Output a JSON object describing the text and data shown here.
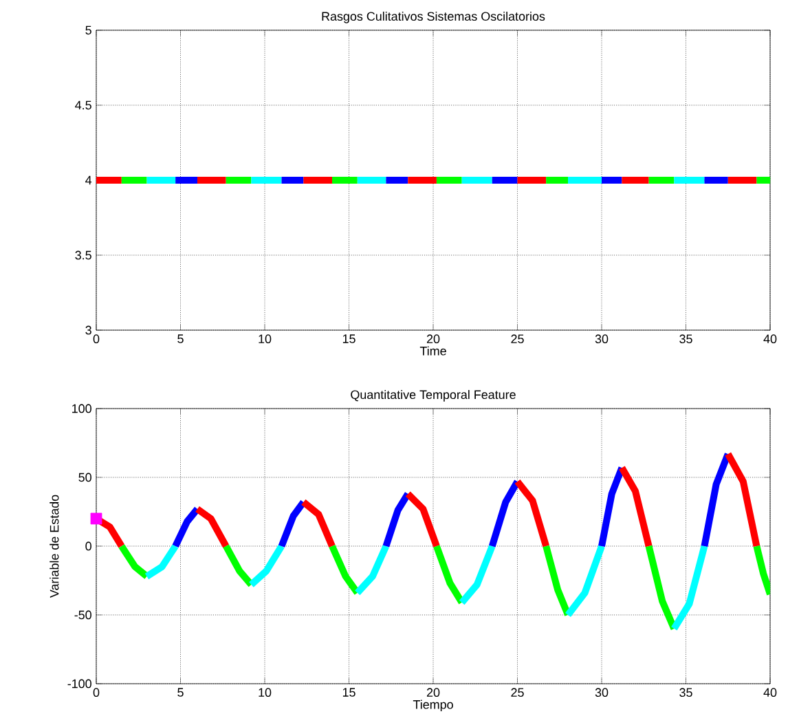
{
  "chart_data": [
    {
      "type": "line",
      "title": "Rasgos Culitativos Sistemas Oscilatorios",
      "xlabel": "Time",
      "xlim": [
        0,
        40
      ],
      "xticks": [
        0,
        5,
        10,
        15,
        20,
        25,
        30,
        35,
        40
      ],
      "ylim": [
        3,
        5
      ],
      "yticks": [
        3,
        3.5,
        4,
        4.5,
        5
      ],
      "grid": true,
      "series": [
        {
          "color": "#ff0000",
          "x": [
            0,
            1.5
          ],
          "values": [
            4,
            4
          ]
        },
        {
          "color": "#00ff00",
          "x": [
            1.5,
            3.0
          ],
          "values": [
            4,
            4
          ]
        },
        {
          "color": "#00ffff",
          "x": [
            3.0,
            4.7
          ],
          "values": [
            4,
            4
          ]
        },
        {
          "color": "#0000ff",
          "x": [
            4.7,
            6.0
          ],
          "values": [
            4,
            4
          ]
        },
        {
          "color": "#ff0000",
          "x": [
            6.0,
            7.7
          ],
          "values": [
            4,
            4
          ]
        },
        {
          "color": "#00ff00",
          "x": [
            7.7,
            9.2
          ],
          "values": [
            4,
            4
          ]
        },
        {
          "color": "#00ffff",
          "x": [
            9.2,
            11.0
          ],
          "values": [
            4,
            4
          ]
        },
        {
          "color": "#0000ff",
          "x": [
            11.0,
            12.3
          ],
          "values": [
            4,
            4
          ]
        },
        {
          "color": "#ff0000",
          "x": [
            12.3,
            14.0
          ],
          "values": [
            4,
            4
          ]
        },
        {
          "color": "#00ff00",
          "x": [
            14.0,
            15.5
          ],
          "values": [
            4,
            4
          ]
        },
        {
          "color": "#00ffff",
          "x": [
            15.5,
            17.2
          ],
          "values": [
            4,
            4
          ]
        },
        {
          "color": "#0000ff",
          "x": [
            17.2,
            18.5
          ],
          "values": [
            4,
            4
          ]
        },
        {
          "color": "#ff0000",
          "x": [
            18.5,
            20.2
          ],
          "values": [
            4,
            4
          ]
        },
        {
          "color": "#00ff00",
          "x": [
            20.2,
            21.7
          ],
          "values": [
            4,
            4
          ]
        },
        {
          "color": "#00ffff",
          "x": [
            21.7,
            23.5
          ],
          "values": [
            4,
            4
          ]
        },
        {
          "color": "#0000ff",
          "x": [
            23.5,
            25.0
          ],
          "values": [
            4,
            4
          ]
        },
        {
          "color": "#ff0000",
          "x": [
            25.0,
            26.7
          ],
          "values": [
            4,
            4
          ]
        },
        {
          "color": "#00ff00",
          "x": [
            26.7,
            28.0
          ],
          "values": [
            4,
            4
          ]
        },
        {
          "color": "#00ffff",
          "x": [
            28.0,
            30.0
          ],
          "values": [
            4,
            4
          ]
        },
        {
          "color": "#0000ff",
          "x": [
            30.0,
            31.2
          ],
          "values": [
            4,
            4
          ]
        },
        {
          "color": "#ff0000",
          "x": [
            31.2,
            32.8
          ],
          "values": [
            4,
            4
          ]
        },
        {
          "color": "#00ff00",
          "x": [
            32.8,
            34.3
          ],
          "values": [
            4,
            4
          ]
        },
        {
          "color": "#00ffff",
          "x": [
            34.3,
            36.1
          ],
          "values": [
            4,
            4
          ]
        },
        {
          "color": "#0000ff",
          "x": [
            36.1,
            37.5
          ],
          "values": [
            4,
            4
          ]
        },
        {
          "color": "#ff0000",
          "x": [
            37.5,
            39.2
          ],
          "values": [
            4,
            4
          ]
        },
        {
          "color": "#00ff00",
          "x": [
            39.2,
            40
          ],
          "values": [
            4,
            4
          ]
        }
      ]
    },
    {
      "type": "line",
      "title": "Quantitative Temporal Feature",
      "xlabel": "Tiempo",
      "ylabel": "Variable de Estado",
      "xlim": [
        0,
        40
      ],
      "xticks": [
        0,
        5,
        10,
        15,
        20,
        25,
        30,
        35,
        40
      ],
      "ylim": [
        -100,
        100
      ],
      "yticks": [
        -100,
        -50,
        0,
        50,
        100
      ],
      "grid": true,
      "series": [
        {
          "color": "#ff0000",
          "x": [
            0,
            0.8,
            1.5
          ],
          "values": [
            20,
            14,
            0
          ]
        },
        {
          "color": "#00ff00",
          "x": [
            1.5,
            2.3,
            3.0
          ],
          "values": [
            0,
            -15,
            -22
          ]
        },
        {
          "color": "#00ffff",
          "x": [
            3.0,
            3.9,
            4.7
          ],
          "values": [
            -22,
            -15,
            0
          ]
        },
        {
          "color": "#0000ff",
          "x": [
            4.7,
            5.4,
            6.0
          ],
          "values": [
            0,
            18,
            27
          ]
        },
        {
          "color": "#ff0000",
          "x": [
            6.0,
            6.8,
            7.7
          ],
          "values": [
            27,
            20,
            0
          ]
        },
        {
          "color": "#00ff00",
          "x": [
            7.7,
            8.5,
            9.2
          ],
          "values": [
            0,
            -18,
            -28
          ]
        },
        {
          "color": "#00ffff",
          "x": [
            9.2,
            10.1,
            11.0
          ],
          "values": [
            -28,
            -18,
            0
          ]
        },
        {
          "color": "#0000ff",
          "x": [
            11.0,
            11.7,
            12.3
          ],
          "values": [
            0,
            22,
            32
          ]
        },
        {
          "color": "#ff0000",
          "x": [
            12.3,
            13.2,
            14.0
          ],
          "values": [
            32,
            23,
            0
          ]
        },
        {
          "color": "#00ff00",
          "x": [
            14.0,
            14.8,
            15.5
          ],
          "values": [
            0,
            -22,
            -34
          ]
        },
        {
          "color": "#00ffff",
          "x": [
            15.5,
            16.4,
            17.2
          ],
          "values": [
            -34,
            -22,
            0
          ]
        },
        {
          "color": "#0000ff",
          "x": [
            17.2,
            17.9,
            18.5
          ],
          "values": [
            0,
            26,
            38
          ]
        },
        {
          "color": "#ff0000",
          "x": [
            18.5,
            19.4,
            20.2
          ],
          "values": [
            38,
            27,
            0
          ]
        },
        {
          "color": "#00ff00",
          "x": [
            20.2,
            21.0,
            21.7
          ],
          "values": [
            0,
            -27,
            -41
          ]
        },
        {
          "color": "#00ffff",
          "x": [
            21.7,
            22.6,
            23.5
          ],
          "values": [
            -41,
            -28,
            0
          ]
        },
        {
          "color": "#0000ff",
          "x": [
            23.5,
            24.3,
            25.0
          ],
          "values": [
            0,
            32,
            47
          ]
        },
        {
          "color": "#ff0000",
          "x": [
            25.0,
            25.9,
            26.7
          ],
          "values": [
            47,
            33,
            0
          ]
        },
        {
          "color": "#00ff00",
          "x": [
            26.7,
            27.4,
            28.0
          ],
          "values": [
            0,
            -32,
            -50
          ]
        },
        {
          "color": "#00ffff",
          "x": [
            28.0,
            29.0,
            30.0
          ],
          "values": [
            -50,
            -34,
            0
          ]
        },
        {
          "color": "#0000ff",
          "x": [
            30.0,
            30.6,
            31.2
          ],
          "values": [
            0,
            38,
            57
          ]
        },
        {
          "color": "#ff0000",
          "x": [
            31.2,
            32.0,
            32.8
          ],
          "values": [
            57,
            40,
            0
          ]
        },
        {
          "color": "#00ff00",
          "x": [
            32.8,
            33.6,
            34.3
          ],
          "values": [
            0,
            -40,
            -60
          ]
        },
        {
          "color": "#00ffff",
          "x": [
            34.3,
            35.2,
            36.1
          ],
          "values": [
            -60,
            -42,
            0
          ]
        },
        {
          "color": "#0000ff",
          "x": [
            36.1,
            36.8,
            37.5
          ],
          "values": [
            0,
            45,
            67
          ]
        },
        {
          "color": "#ff0000",
          "x": [
            37.5,
            38.4,
            39.2
          ],
          "values": [
            67,
            47,
            0
          ]
        },
        {
          "color": "#00ff00",
          "x": [
            39.2,
            39.6,
            40
          ],
          "values": [
            0,
            -20,
            -35
          ]
        },
        {
          "type": "scatter",
          "marker": "square",
          "color": "#ff00ff",
          "x": [
            0
          ],
          "values": [
            20
          ]
        }
      ]
    }
  ]
}
